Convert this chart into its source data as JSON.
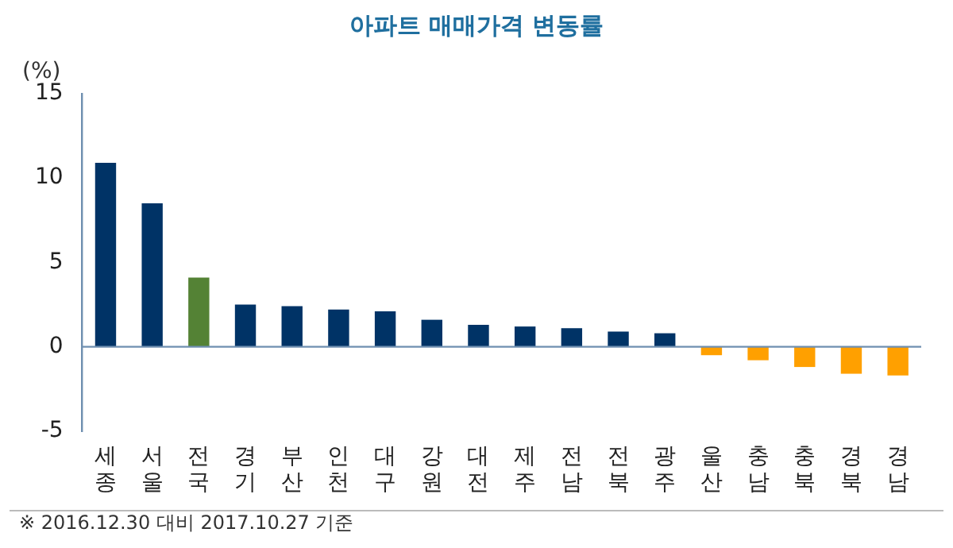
{
  "chart_data": {
    "type": "bar",
    "title": "아파트 매매가격 변동률",
    "ylabel": "(%)",
    "categories": [
      "세종",
      "서울",
      "전국",
      "경기",
      "부산",
      "인천",
      "대구",
      "강원",
      "대전",
      "제주",
      "전남",
      "전북",
      "광주",
      "울산",
      "충남",
      "충북",
      "경북",
      "경남"
    ],
    "values": [
      10.9,
      8.5,
      4.1,
      2.5,
      2.4,
      2.2,
      2.1,
      1.6,
      1.3,
      1.2,
      1.1,
      0.9,
      0.8,
      -0.5,
      -0.8,
      -1.2,
      -1.6,
      -1.7
    ],
    "colors": [
      "#003366",
      "#003366",
      "#548235",
      "#003366",
      "#003366",
      "#003366",
      "#003366",
      "#003366",
      "#003366",
      "#003366",
      "#003366",
      "#003366",
      "#003366",
      "#ffa000",
      "#ffa000",
      "#ffa000",
      "#ffa000",
      "#ffa000"
    ],
    "ref_lines": [
      {
        "axis": "y",
        "value": 0,
        "color": "#6f8fb0"
      }
    ],
    "ylim": [
      -5,
      15
    ],
    "yticks": [
      -5,
      0,
      5,
      10,
      15
    ],
    "grid": false,
    "legend": false,
    "annotations": [
      "※ 2016.12.30 대비 2017.10.27 기준"
    ]
  }
}
